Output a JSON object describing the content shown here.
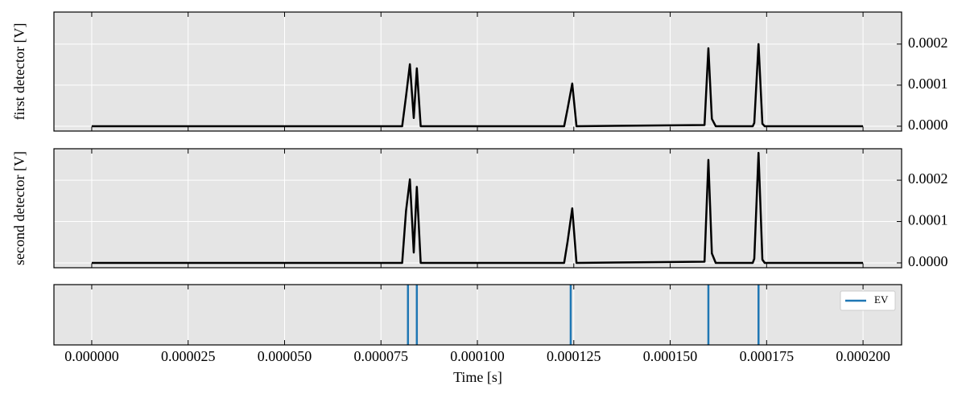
{
  "chart_data": [
    {
      "type": "line",
      "ylabel": "first detector [V]",
      "color": "#000000",
      "grid": true,
      "xlim": [
        -9.8e-06,
        0.00021
      ],
      "ylim": [
        -1.18e-05,
        0.000278
      ],
      "yticks": [
        {
          "value": 0,
          "label": "0.0000"
        },
        {
          "value": 0.0001,
          "label": "0.0001"
        },
        {
          "value": 0.0002,
          "label": "0.0002"
        }
      ],
      "x": [
        0,
        8.05e-05,
        8.15e-05,
        8.25e-05,
        8.35e-05,
        8.43e-05,
        8.53e-05,
        0.0001225,
        0.0001234,
        0.0001246,
        0.0001257,
        0.0001589,
        0.0001599,
        0.0001608,
        0.0001618,
        0.0001714,
        0.0001718,
        0.0001729,
        0.0001739,
        0.0001745,
        0.0002
      ],
      "values": [
        0,
        0,
        7.3e-05,
        0.000151,
        2e-05,
        0.000141,
        0,
        0,
        4.3e-05,
        0.000104,
        0,
        3e-06,
        0.00019,
        1.8e-05,
        0,
        0,
        8e-06,
        0.0002,
        6e-06,
        0,
        0
      ]
    },
    {
      "type": "line",
      "ylabel": "second detector [V]",
      "color": "#000000",
      "grid": true,
      "xlim": [
        -9.8e-06,
        0.00021
      ],
      "ylim": [
        -1.17e-05,
        0.000276
      ],
      "yticks": [
        {
          "value": 0,
          "label": "0.0000"
        },
        {
          "value": 0.0001,
          "label": "0.0001"
        },
        {
          "value": 0.0002,
          "label": "0.0002"
        }
      ],
      "x": [
        0,
        8.05e-05,
        8.15e-05,
        8.25e-05,
        8.35e-05,
        8.43e-05,
        8.53e-05,
        0.0001225,
        0.0001234,
        0.0001246,
        0.0001257,
        0.0001589,
        0.0001599,
        0.0001608,
        0.0001618,
        0.0001714,
        0.0001718,
        0.0001729,
        0.0001739,
        0.0001745,
        0.0002
      ],
      "values": [
        0,
        0,
        0.000126,
        0.000202,
        2.5e-05,
        0.000184,
        0,
        0,
        5.2e-05,
        0.000132,
        0,
        3e-06,
        0.000249,
        2.3e-05,
        0,
        0,
        1e-05,
        0.000266,
        8e-06,
        0,
        0
      ]
    },
    {
      "type": "event",
      "xlabel": "Time [s]",
      "grid": true,
      "legend": "upper right",
      "xlim": [
        -9.8e-06,
        0.00021
      ],
      "xticks": [
        {
          "value": 0,
          "label": "0.000000"
        },
        {
          "value": 2.5e-05,
          "label": "0.000025"
        },
        {
          "value": 5e-05,
          "label": "0.000050"
        },
        {
          "value": 7.5e-05,
          "label": "0.000075"
        },
        {
          "value": 0.0001,
          "label": "0.000100"
        },
        {
          "value": 0.000125,
          "label": "0.000125"
        },
        {
          "value": 0.00015,
          "label": "0.000150"
        },
        {
          "value": 0.000175,
          "label": "0.000175"
        },
        {
          "value": 0.0002,
          "label": "0.000200"
        }
      ],
      "series": [
        {
          "name": "EV",
          "color": "#1f77b4",
          "x": [
            8.2e-05,
            8.43e-05,
            0.0001242,
            0.0001599,
            0.0001729
          ]
        }
      ]
    }
  ]
}
